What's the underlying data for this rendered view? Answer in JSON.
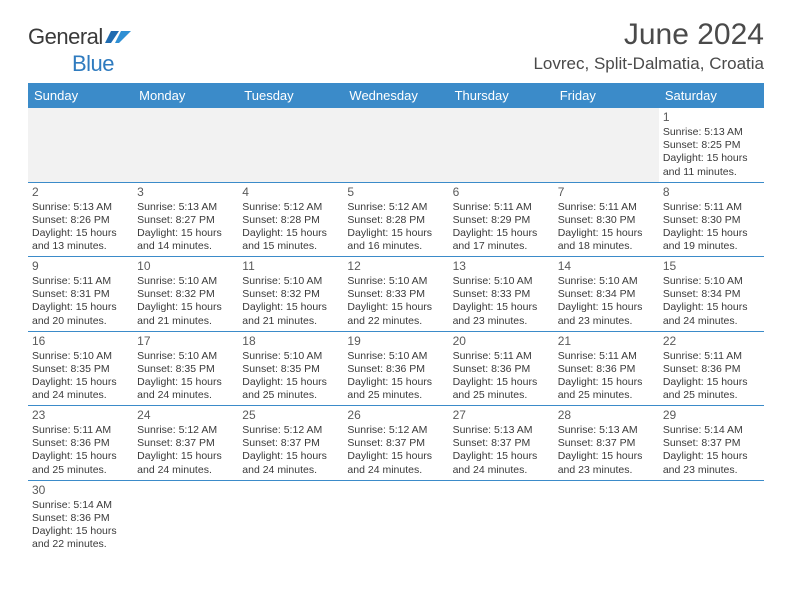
{
  "logo": {
    "text1": "General",
    "text2": "Blue"
  },
  "title": "June 2024",
  "location": "Lovrec, Split-Dalmatia, Croatia",
  "colors": {
    "header_bg": "#3b8bc9",
    "header_text": "#ffffff",
    "logo_blue": "#2f7bbf",
    "text": "#3a3a3a",
    "empty_bg": "#f2f2f2",
    "rule": "#3b8bc9"
  },
  "weekdays": [
    "Sunday",
    "Monday",
    "Tuesday",
    "Wednesday",
    "Thursday",
    "Friday",
    "Saturday"
  ],
  "weeks": [
    [
      null,
      null,
      null,
      null,
      null,
      null,
      {
        "n": "1",
        "sr": "Sunrise: 5:13 AM",
        "ss": "Sunset: 8:25 PM",
        "d1": "Daylight: 15 hours",
        "d2": "and 11 minutes."
      }
    ],
    [
      {
        "n": "2",
        "sr": "Sunrise: 5:13 AM",
        "ss": "Sunset: 8:26 PM",
        "d1": "Daylight: 15 hours",
        "d2": "and 13 minutes."
      },
      {
        "n": "3",
        "sr": "Sunrise: 5:13 AM",
        "ss": "Sunset: 8:27 PM",
        "d1": "Daylight: 15 hours",
        "d2": "and 14 minutes."
      },
      {
        "n": "4",
        "sr": "Sunrise: 5:12 AM",
        "ss": "Sunset: 8:28 PM",
        "d1": "Daylight: 15 hours",
        "d2": "and 15 minutes."
      },
      {
        "n": "5",
        "sr": "Sunrise: 5:12 AM",
        "ss": "Sunset: 8:28 PM",
        "d1": "Daylight: 15 hours",
        "d2": "and 16 minutes."
      },
      {
        "n": "6",
        "sr": "Sunrise: 5:11 AM",
        "ss": "Sunset: 8:29 PM",
        "d1": "Daylight: 15 hours",
        "d2": "and 17 minutes."
      },
      {
        "n": "7",
        "sr": "Sunrise: 5:11 AM",
        "ss": "Sunset: 8:30 PM",
        "d1": "Daylight: 15 hours",
        "d2": "and 18 minutes."
      },
      {
        "n": "8",
        "sr": "Sunrise: 5:11 AM",
        "ss": "Sunset: 8:30 PM",
        "d1": "Daylight: 15 hours",
        "d2": "and 19 minutes."
      }
    ],
    [
      {
        "n": "9",
        "sr": "Sunrise: 5:11 AM",
        "ss": "Sunset: 8:31 PM",
        "d1": "Daylight: 15 hours",
        "d2": "and 20 minutes."
      },
      {
        "n": "10",
        "sr": "Sunrise: 5:10 AM",
        "ss": "Sunset: 8:32 PM",
        "d1": "Daylight: 15 hours",
        "d2": "and 21 minutes."
      },
      {
        "n": "11",
        "sr": "Sunrise: 5:10 AM",
        "ss": "Sunset: 8:32 PM",
        "d1": "Daylight: 15 hours",
        "d2": "and 21 minutes."
      },
      {
        "n": "12",
        "sr": "Sunrise: 5:10 AM",
        "ss": "Sunset: 8:33 PM",
        "d1": "Daylight: 15 hours",
        "d2": "and 22 minutes."
      },
      {
        "n": "13",
        "sr": "Sunrise: 5:10 AM",
        "ss": "Sunset: 8:33 PM",
        "d1": "Daylight: 15 hours",
        "d2": "and 23 minutes."
      },
      {
        "n": "14",
        "sr": "Sunrise: 5:10 AM",
        "ss": "Sunset: 8:34 PM",
        "d1": "Daylight: 15 hours",
        "d2": "and 23 minutes."
      },
      {
        "n": "15",
        "sr": "Sunrise: 5:10 AM",
        "ss": "Sunset: 8:34 PM",
        "d1": "Daylight: 15 hours",
        "d2": "and 24 minutes."
      }
    ],
    [
      {
        "n": "16",
        "sr": "Sunrise: 5:10 AM",
        "ss": "Sunset: 8:35 PM",
        "d1": "Daylight: 15 hours",
        "d2": "and 24 minutes."
      },
      {
        "n": "17",
        "sr": "Sunrise: 5:10 AM",
        "ss": "Sunset: 8:35 PM",
        "d1": "Daylight: 15 hours",
        "d2": "and 24 minutes."
      },
      {
        "n": "18",
        "sr": "Sunrise: 5:10 AM",
        "ss": "Sunset: 8:35 PM",
        "d1": "Daylight: 15 hours",
        "d2": "and 25 minutes."
      },
      {
        "n": "19",
        "sr": "Sunrise: 5:10 AM",
        "ss": "Sunset: 8:36 PM",
        "d1": "Daylight: 15 hours",
        "d2": "and 25 minutes."
      },
      {
        "n": "20",
        "sr": "Sunrise: 5:11 AM",
        "ss": "Sunset: 8:36 PM",
        "d1": "Daylight: 15 hours",
        "d2": "and 25 minutes."
      },
      {
        "n": "21",
        "sr": "Sunrise: 5:11 AM",
        "ss": "Sunset: 8:36 PM",
        "d1": "Daylight: 15 hours",
        "d2": "and 25 minutes."
      },
      {
        "n": "22",
        "sr": "Sunrise: 5:11 AM",
        "ss": "Sunset: 8:36 PM",
        "d1": "Daylight: 15 hours",
        "d2": "and 25 minutes."
      }
    ],
    [
      {
        "n": "23",
        "sr": "Sunrise: 5:11 AM",
        "ss": "Sunset: 8:36 PM",
        "d1": "Daylight: 15 hours",
        "d2": "and 25 minutes."
      },
      {
        "n": "24",
        "sr": "Sunrise: 5:12 AM",
        "ss": "Sunset: 8:37 PM",
        "d1": "Daylight: 15 hours",
        "d2": "and 24 minutes."
      },
      {
        "n": "25",
        "sr": "Sunrise: 5:12 AM",
        "ss": "Sunset: 8:37 PM",
        "d1": "Daylight: 15 hours",
        "d2": "and 24 minutes."
      },
      {
        "n": "26",
        "sr": "Sunrise: 5:12 AM",
        "ss": "Sunset: 8:37 PM",
        "d1": "Daylight: 15 hours",
        "d2": "and 24 minutes."
      },
      {
        "n": "27",
        "sr": "Sunrise: 5:13 AM",
        "ss": "Sunset: 8:37 PM",
        "d1": "Daylight: 15 hours",
        "d2": "and 24 minutes."
      },
      {
        "n": "28",
        "sr": "Sunrise: 5:13 AM",
        "ss": "Sunset: 8:37 PM",
        "d1": "Daylight: 15 hours",
        "d2": "and 23 minutes."
      },
      {
        "n": "29",
        "sr": "Sunrise: 5:14 AM",
        "ss": "Sunset: 8:37 PM",
        "d1": "Daylight: 15 hours",
        "d2": "and 23 minutes."
      }
    ],
    [
      {
        "n": "30",
        "sr": "Sunrise: 5:14 AM",
        "ss": "Sunset: 8:36 PM",
        "d1": "Daylight: 15 hours",
        "d2": "and 22 minutes."
      },
      null,
      null,
      null,
      null,
      null,
      null
    ]
  ]
}
